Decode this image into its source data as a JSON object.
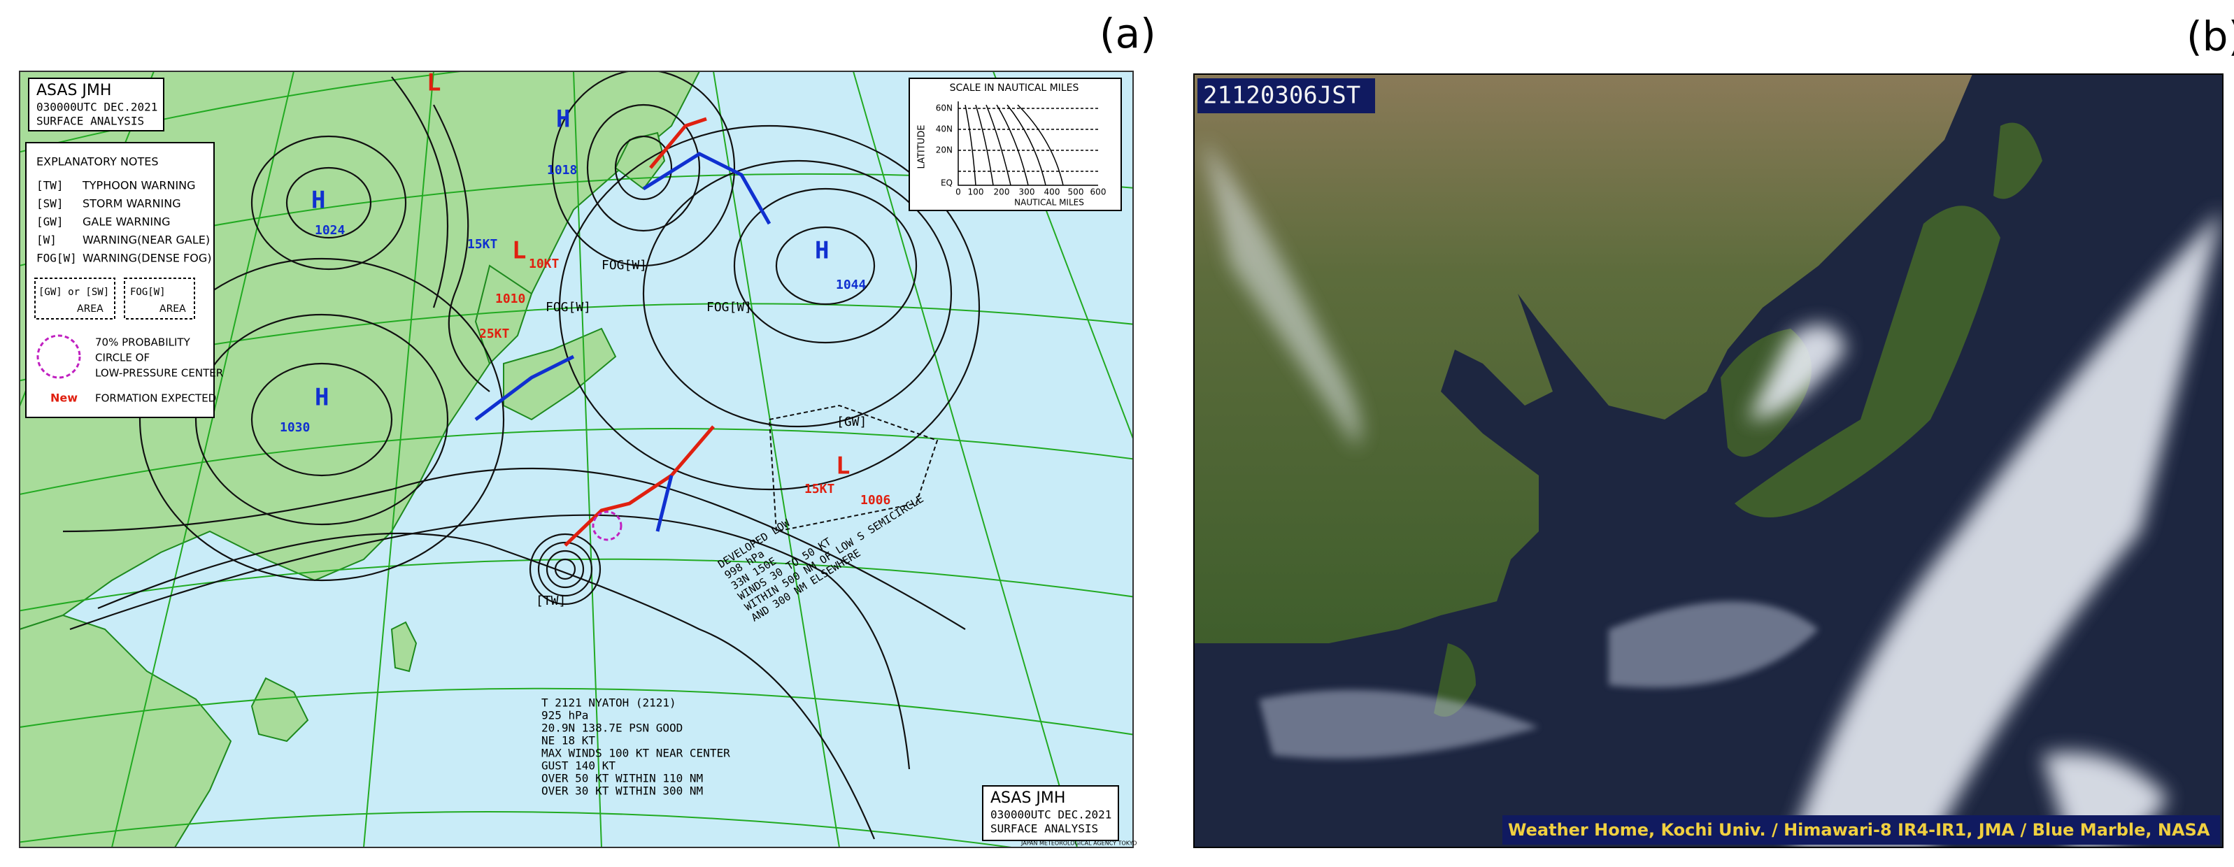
{
  "panels": [
    {
      "label": "(a)",
      "top_box": [
        "ASAS JMH",
        "030000UTC DEC.2021",
        "SURFACE ANALYSIS"
      ],
      "notes": {
        "title": "EXPLANATORY NOTES",
        "items": [
          {
            "code": "[TW]",
            "text": "TYPHOON WARNING"
          },
          {
            "code": "[SW]",
            "text": "STORM WARNING"
          },
          {
            "code": "[GW]",
            "text": "GALE WARNING"
          },
          {
            "code": "[W]",
            "text": "WARNING(NEAR GALE)"
          },
          {
            "code": "FOG[W]",
            "text": "WARNING(DENSE FOG)"
          }
        ],
        "area_labels": [
          "[GW] or [SW]",
          "FOG[W]",
          "AREA",
          "AREA"
        ],
        "probability": [
          "70% PROBABILITY",
          "CIRCLE OF",
          "LOW-PRESSURE CENTER"
        ],
        "new": "New",
        "new_text": "FORMATION EXPECTED"
      },
      "scale": {
        "title": "SCALE IN NAUTICAL MILES",
        "axis": "LATITUDE",
        "xlabel": "NAUTICAL MILES",
        "lat_labels": [
          "60N",
          "40N",
          "20N",
          "EQ"
        ],
        "nm_labels": [
          "0",
          "100",
          "200",
          "300",
          "400",
          "500",
          "600"
        ]
      },
      "map_labels": [
        "H",
        "1024",
        "H",
        "1030",
        "H",
        "1044",
        "L",
        "1010",
        "L",
        "1006",
        "15KT",
        "10KT",
        "25KT",
        "15KT",
        "FOG[W]",
        "FOG[W]",
        "FOG[W]",
        "[GW]",
        "[TW]",
        "H",
        "1018",
        "L"
      ],
      "typhoon_info": [
        "T 2121 NYATOH (2121)",
        "925 hPa",
        "20.9N 138.7E PSN GOOD",
        "NE 18 KT",
        "MAX WINDS 100 KT NEAR CENTER",
        "GUST 140 KT",
        "OVER 50 KT WITHIN 110 NM",
        "OVER 30 KT WITHIN 300 NM"
      ],
      "low_text": [
        "DEVELOPED LOW",
        "998 hPa",
        "33N 150E",
        "WINDS 30 TO 50 KT",
        "WITHIN 500 NM OF LOW S SEMICIRCLE",
        "AND 300 NM ELSEWHERE"
      ],
      "bottom_box": [
        "ASAS JMH",
        "030000UTC DEC.2021",
        "SURFACE ANALYSIS"
      ],
      "agency": "JAPAN METEOROLOGICAL AGENCY TOKYO"
    },
    {
      "label": "(b)",
      "timestamp": "21120306JST",
      "credit": "Weather Home, Kochi Univ. / Himawari-8 IR4-IR1, JMA / Blue Marble, NASA"
    }
  ]
}
